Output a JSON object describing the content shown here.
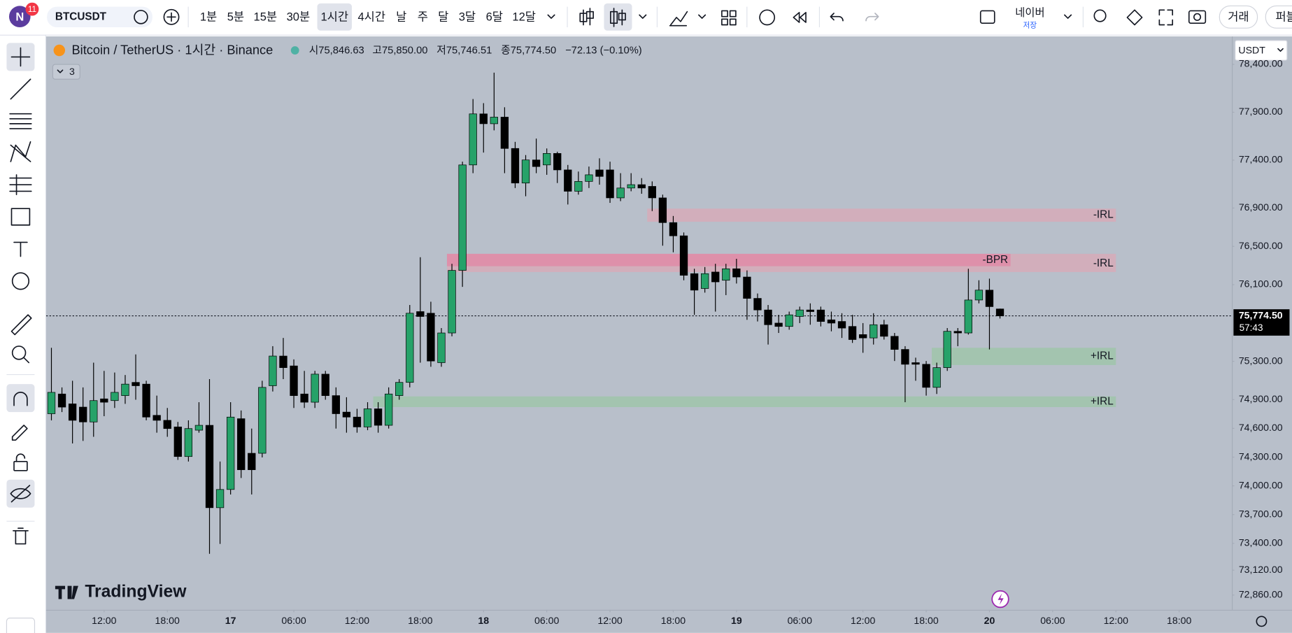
{
  "toolbar": {
    "avatar": "N",
    "badge": "11",
    "symbol": "BTCUSDT",
    "intervals": [
      "1분",
      "5분",
      "15분",
      "30분",
      "1시간",
      "4시간",
      "날",
      "주",
      "달",
      "3달",
      "6달",
      "12달"
    ],
    "broker": "네이버",
    "broker_sub": "저장",
    "trade": "거래",
    "publish": "퍼블"
  },
  "legend": {
    "title": "Bitcoin / TetherUS · 1시간 · Binance",
    "ohlc": [
      "시75,846.63",
      "고75,850.00",
      "저75,746.51",
      "종75,774.50",
      "−72.13 (−0.10%)"
    ],
    "indicators": "3"
  },
  "currency": "USDT",
  "branding": "TradingView",
  "chart_data": {
    "type": "candlestick",
    "up_color": "#26a269",
    "down_color": "#000000",
    "grid": false,
    "xlim": [
      -0.5,
      112
    ],
    "xticks": [
      {
        "value": 5,
        "label": "12:00"
      },
      {
        "value": 11,
        "label": "18:00"
      },
      {
        "value": 17,
        "label": "17"
      },
      {
        "value": 23,
        "label": "06:00"
      },
      {
        "value": 29,
        "label": "12:00"
      },
      {
        "value": 35,
        "label": "18:00"
      },
      {
        "value": 41,
        "label": "18"
      },
      {
        "value": 47,
        "label": "06:00"
      },
      {
        "value": 53,
        "label": "12:00"
      },
      {
        "value": 59,
        "label": "18:00"
      },
      {
        "value": 65,
        "label": "19"
      },
      {
        "value": 71,
        "label": "06:00"
      },
      {
        "value": 77,
        "label": "12:00"
      },
      {
        "value": 83,
        "label": "18:00"
      },
      {
        "value": 89,
        "label": "20"
      },
      {
        "value": 95,
        "label": "06:00"
      },
      {
        "value": 101,
        "label": "12:00"
      },
      {
        "value": 107,
        "label": "18:00"
      }
    ],
    "ylim": [
      72706,
      78692
    ],
    "yticks": [
      {
        "value": 78400,
        "label": "78,400.00"
      },
      {
        "value": 77900,
        "label": "77,900.00"
      },
      {
        "value": 77400,
        "label": "77,400.00"
      },
      {
        "value": 76900,
        "label": "76,900.00"
      },
      {
        "value": 76500,
        "label": "76,500.00"
      },
      {
        "value": 76100,
        "label": "76,100.00"
      },
      {
        "value": 75300,
        "label": "75,300.00"
      },
      {
        "value": 74900,
        "label": "74,900.00"
      },
      {
        "value": 74600,
        "label": "74,600.00"
      },
      {
        "value": 74300,
        "label": "74,300.00"
      },
      {
        "value": 74000,
        "label": "74,000.00"
      },
      {
        "value": 73700,
        "label": "73,700.00"
      },
      {
        "value": 73400,
        "label": "73,400.00"
      },
      {
        "value": 73120,
        "label": "73,120.00"
      },
      {
        "value": 72860,
        "label": "72,860.00"
      }
    ],
    "candles": [
      [
        74753,
        75441,
        74684,
        74976
      ],
      [
        74959,
        75028,
        74770,
        74822
      ],
      [
        74856,
        75097,
        74443,
        74684
      ],
      [
        74822,
        75028,
        74469,
        74667
      ],
      [
        74667,
        75286,
        74512,
        74890
      ],
      [
        74908,
        75200,
        74727,
        74873
      ],
      [
        74890,
        75183,
        74813,
        74976
      ],
      [
        74942,
        75157,
        74856,
        75062
      ],
      [
        75080,
        75372,
        74899,
        75045
      ],
      [
        75062,
        75097,
        74684,
        74718
      ],
      [
        74736,
        74942,
        74555,
        74684
      ],
      [
        74684,
        74813,
        74512,
        74598
      ],
      [
        74615,
        74667,
        74271,
        74306
      ],
      [
        74306,
        74684,
        74254,
        74598
      ],
      [
        74581,
        74873,
        74555,
        74632
      ],
      [
        74632,
        75114,
        73291,
        73772
      ],
      [
        73772,
        74254,
        73394,
        73962
      ],
      [
        73962,
        74873,
        73910,
        74718
      ],
      [
        74701,
        74787,
        74082,
        74168
      ],
      [
        74340,
        74598,
        73910,
        74168
      ],
      [
        74340,
        75097,
        74297,
        75028
      ],
      [
        75045,
        75458,
        74985,
        75355
      ],
      [
        75355,
        75544,
        75114,
        75234
      ],
      [
        75252,
        75320,
        74813,
        74942
      ],
      [
        74959,
        75200,
        74813,
        74873
      ],
      [
        74873,
        75200,
        74813,
        75166
      ],
      [
        75166,
        75200,
        74899,
        74942
      ],
      [
        74942,
        75028,
        74598,
        74753
      ],
      [
        74770,
        74925,
        74555,
        74718
      ],
      [
        74718,
        74804,
        74555,
        74615
      ],
      [
        74615,
        74873,
        74581,
        74804
      ],
      [
        74804,
        74873,
        74555,
        74632
      ],
      [
        74632,
        75028,
        74598,
        74959
      ],
      [
        74942,
        75114,
        74899,
        75080
      ],
      [
        75080,
        75888,
        75028,
        75802
      ],
      [
        75819,
        76387,
        75286,
        75768
      ],
      [
        75802,
        75922,
        75243,
        75303
      ],
      [
        75286,
        75647,
        75243,
        75596
      ],
      [
        75596,
        76318,
        75561,
        76249
      ],
      [
        76249,
        77384,
        76077,
        77350
      ],
      [
        77350,
        78038,
        77264,
        77883
      ],
      [
        77883,
        77995,
        77479,
        77780
      ],
      [
        77780,
        78313,
        77711,
        77849
      ],
      [
        77849,
        77952,
        77264,
        77522
      ],
      [
        77522,
        77591,
        77109,
        77161
      ],
      [
        77161,
        77453,
        77023,
        77402
      ],
      [
        77402,
        77625,
        77264,
        77333
      ],
      [
        77350,
        77522,
        77247,
        77470
      ],
      [
        77470,
        77488,
        77161,
        77298
      ],
      [
        77298,
        77350,
        76937,
        77075
      ],
      [
        77075,
        77281,
        77040,
        77178
      ],
      [
        77178,
        77333,
        77109,
        77247
      ],
      [
        77298,
        77419,
        77144,
        77230
      ],
      [
        77298,
        77384,
        76954,
        77006
      ],
      [
        77006,
        77264,
        76972,
        77109
      ],
      [
        77109,
        77264,
        77075,
        77144
      ],
      [
        77144,
        77212,
        77049,
        77109
      ],
      [
        77126,
        77178,
        76868,
        77006
      ],
      [
        77006,
        77040,
        76507,
        76748
      ],
      [
        76748,
        76817,
        76438,
        76610
      ],
      [
        76610,
        76645,
        76146,
        76198
      ],
      [
        76215,
        76266,
        75785,
        76043
      ],
      [
        76060,
        76284,
        76017,
        76215
      ],
      [
        76232,
        76318,
        75819,
        76129
      ],
      [
        76146,
        76318,
        75991,
        76266
      ],
      [
        76266,
        76370,
        76112,
        76180
      ],
      [
        76180,
        76249,
        75733,
        75957
      ],
      [
        75957,
        76008,
        75716,
        75836
      ],
      [
        75836,
        75888,
        75475,
        75682
      ],
      [
        75699,
        75785,
        75596,
        75664
      ],
      [
        75664,
        75819,
        75630,
        75785
      ],
      [
        75768,
        75871,
        75699,
        75836
      ],
      [
        75836,
        75905,
        75682,
        75819
      ],
      [
        75836,
        75871,
        75664,
        75716
      ],
      [
        75733,
        75819,
        75613,
        75699
      ],
      [
        75716,
        75802,
        75544,
        75647
      ],
      [
        75664,
        75785,
        75492,
        75527
      ],
      [
        75579,
        75699,
        75389,
        75544
      ],
      [
        75544,
        75802,
        75475,
        75682
      ],
      [
        75682,
        75733,
        75527,
        75561
      ],
      [
        75561,
        75596,
        75303,
        75424
      ],
      [
        75424,
        75458,
        74873,
        75269
      ],
      [
        75286,
        75338,
        75097,
        75269
      ],
      [
        75269,
        75303,
        74942,
        75028
      ],
      [
        75028,
        75286,
        74959,
        75234
      ],
      [
        75234,
        75647,
        75200,
        75613
      ],
      [
        75613,
        75647,
        75458,
        75596
      ],
      [
        75596,
        76266,
        75579,
        75940
      ],
      [
        75940,
        76146,
        75905,
        76043
      ],
      [
        76043,
        76163,
        75424,
        75871
      ],
      [
        75846.63,
        75850,
        75746.51,
        75774.5
      ]
    ],
    "zones": [
      {
        "label": "-IRL",
        "top": 76894,
        "bottom": 76757,
        "from": 57,
        "to": 101,
        "color": "#d6aab9"
      },
      {
        "label": "-IRL",
        "top": 76422,
        "bottom": 76232,
        "from": 38,
        "to": 101,
        "color": "#d6aab9"
      },
      {
        "label": "-BPR",
        "top": 76422,
        "bottom": 76293,
        "from": 38,
        "to": 91,
        "color": "#e08ba7"
      },
      {
        "label": "+IRL",
        "top": 75441,
        "bottom": 75261,
        "from": 84,
        "to": 101,
        "color": "#9fc4aa"
      },
      {
        "label": "+IRL",
        "top": 74934,
        "bottom": 74822,
        "from": 31,
        "to": 101,
        "color": "#9fc4aa"
      }
    ],
    "last_price": {
      "value": 75774.5,
      "label": "75,774.50"
    },
    "countdown": "57:43"
  }
}
